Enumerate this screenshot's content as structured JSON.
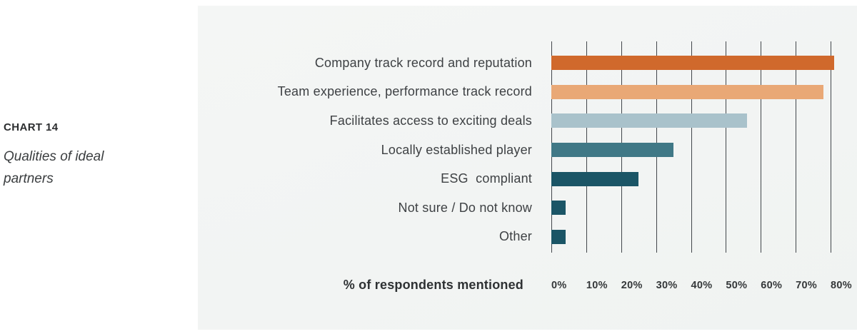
{
  "sidebar": {
    "chart_number": "CHART 14",
    "chart_caption": "Qualities of ideal partners"
  },
  "chart_data": {
    "type": "bar",
    "orientation": "horizontal",
    "title": "Qualities of ideal partners",
    "xlabel": "% of respondents mentioned",
    "categories": [
      "Company track record and reputation",
      "Team experience, performance track record",
      "Facilitates access to exciting deals",
      "Locally established player",
      "ESG  compliant",
      "Not sure / Do not know",
      "Other"
    ],
    "values": [
      81,
      78,
      56,
      35,
      25,
      4,
      4
    ],
    "bar_colors": [
      "#d0692c",
      "#e9a876",
      "#a9c2cb",
      "#407886",
      "#1b5566",
      "#1b5566",
      "#1b5566"
    ],
    "x_ticks": [
      "0%",
      "10%",
      "20%",
      "30%",
      "40%",
      "50%",
      "60%",
      "70%",
      "80%"
    ],
    "xlim": [
      0,
      80
    ],
    "grid": true,
    "gridline_color": "#42464b",
    "panel_background": "#f2f4f3"
  }
}
